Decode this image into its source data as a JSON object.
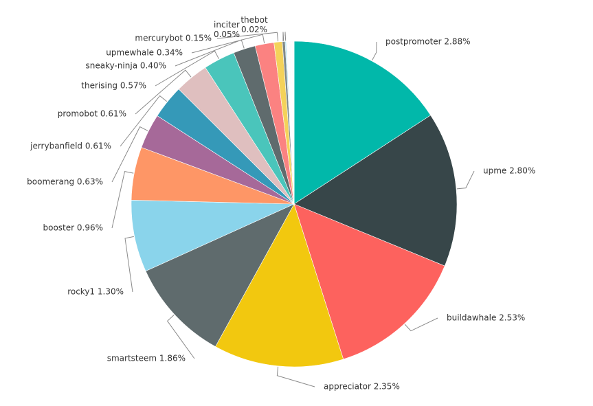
{
  "chart_data": {
    "type": "pie",
    "title": "",
    "slices": [
      {
        "label": "postpromoter",
        "display": "postpromoter 2.88%",
        "value": 2.88,
        "color": "#01B8AA"
      },
      {
        "label": "upme",
        "display": "upme 2.80%",
        "value": 2.8,
        "color": "#374649"
      },
      {
        "label": "buildawhale",
        "display": "buildawhale 2.53%",
        "value": 2.53,
        "color": "#FD625E"
      },
      {
        "label": "appreciator",
        "display": "appreciator 2.35%",
        "value": 2.35,
        "color": "#F2C80F"
      },
      {
        "label": "smartsteem",
        "display": "smartsteem 1.86%",
        "value": 1.86,
        "color": "#5F6B6D"
      },
      {
        "label": "rocky1",
        "display": "rocky1 1.30%",
        "value": 1.3,
        "color": "#8AD4EB"
      },
      {
        "label": "booster",
        "display": "booster 0.96%",
        "value": 0.96,
        "color": "#FE9666"
      },
      {
        "label": "boomerang",
        "display": "boomerang 0.63%",
        "value": 0.63,
        "color": "#A66999"
      },
      {
        "label": "jerrybanfield",
        "display": "jerrybanfield 0.61%",
        "value": 0.61,
        "color": "#3599B8"
      },
      {
        "label": "promobot",
        "display": "promobot 0.61%",
        "value": 0.61,
        "color": "#DFBFBF"
      },
      {
        "label": "therising",
        "display": "therising 0.57%",
        "value": 0.57,
        "color": "#4AC5BB"
      },
      {
        "label": "sneaky-ninja",
        "display": "sneaky-ninja 0.40%",
        "value": 0.4,
        "color": "#5F6B6D"
      },
      {
        "label": "upmewhale",
        "display": "upmewhale 0.34%",
        "value": 0.34,
        "color": "#FB8281"
      },
      {
        "label": "mercurybot",
        "display": "mercurybot 0.15%",
        "value": 0.15,
        "color": "#F4D25A"
      },
      {
        "label": "inciter",
        "display": "inciter 0.05%",
        "value": 0.05,
        "color": "#7F898A"
      },
      {
        "label": "thebot",
        "display": "thebot 0.02%",
        "value": 0.02,
        "color": "#A4DDEE"
      }
    ],
    "other_segments_colors": [
      "#FDAB89",
      "#B687AC",
      "#28738A",
      "#A78F8F",
      "#168980",
      "#293537",
      "#BB4A4A",
      "#B59525",
      "#475052",
      "#6A9FB0",
      "#BD7150",
      "#7B4F71",
      "#1B4D5C",
      "#7F7B7B",
      "#01B8AA",
      "#374649",
      "#FD625E",
      "#F2C80F",
      "#5F6B6D",
      "#8AD4EB",
      "#FE9666",
      "#A66999",
      "#3599B8",
      "#DFBFBF"
    ],
    "legend": "none"
  }
}
